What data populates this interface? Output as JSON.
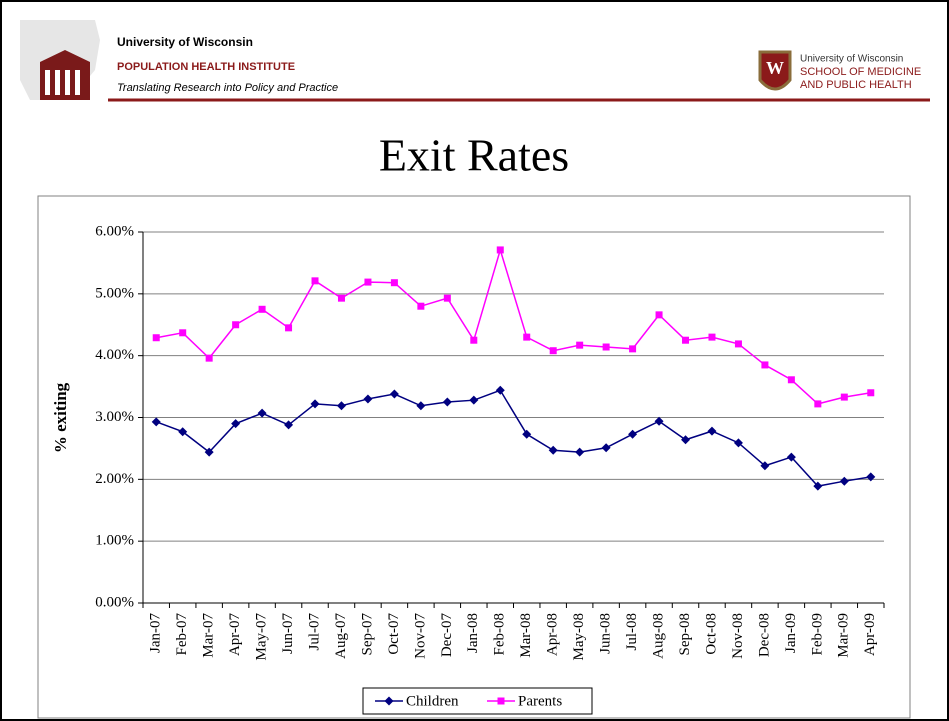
{
  "header": {
    "institute_line1": "University of Wisconsin",
    "institute_line2": "POPULATION HEALTH INSTITUTE",
    "institute_tagline": "Translating Research into Policy and Practice",
    "school_line1": "University of Wisconsin",
    "school_line2": "SCHOOL OF MEDICINE",
    "school_line3": "AND PUBLIC HEALTH"
  },
  "chart_data": {
    "type": "line",
    "title": "Exit Rates",
    "y_label": "% exiting",
    "categories": [
      "Jan-07",
      "Feb-07",
      "Mar-07",
      "Apr-07",
      "May-07",
      "Jun-07",
      "Jul-07",
      "Aug-07",
      "Sep-07",
      "Oct-07",
      "Nov-07",
      "Dec-07",
      "Jan-08",
      "Feb-08",
      "Mar-08",
      "Apr-08",
      "May-08",
      "Jun-08",
      "Jul-08",
      "Aug-08",
      "Sep-08",
      "Oct-08",
      "Nov-08",
      "Dec-08",
      "Jan-09",
      "Feb-09",
      "Mar-09",
      "Apr-09"
    ],
    "series": [
      {
        "name": "Children",
        "color": "#000080",
        "marker": "diamond",
        "values": [
          2.93,
          2.77,
          2.44,
          2.9,
          3.07,
          2.88,
          3.22,
          3.19,
          3.3,
          3.38,
          3.19,
          3.25,
          3.28,
          3.44,
          2.73,
          2.47,
          2.44,
          2.51,
          2.73,
          2.94,
          2.64,
          2.78,
          2.59,
          2.22,
          2.36,
          1.89,
          1.97,
          2.04
        ]
      },
      {
        "name": "Parents",
        "color": "#FF00FF",
        "marker": "square",
        "values": [
          4.29,
          4.37,
          3.96,
          4.5,
          4.75,
          4.45,
          5.21,
          4.93,
          5.19,
          5.18,
          4.8,
          4.93,
          4.25,
          5.71,
          4.3,
          4.08,
          4.17,
          4.14,
          4.11,
          4.66,
          4.25,
          4.3,
          4.19,
          3.85,
          3.61,
          3.22,
          3.33,
          3.4
        ]
      }
    ],
    "ylim": [
      0,
      6
    ],
    "yticks": [
      {
        "value": 0,
        "label": "0.00%"
      },
      {
        "value": 1,
        "label": "1.00%"
      },
      {
        "value": 2,
        "label": "2.00%"
      },
      {
        "value": 3,
        "label": "3.00%"
      },
      {
        "value": 4,
        "label": "4.00%"
      },
      {
        "value": 5,
        "label": "5.00%"
      },
      {
        "value": 6,
        "label": "6.00%"
      }
    ],
    "grid": true,
    "legend": "bottom"
  }
}
